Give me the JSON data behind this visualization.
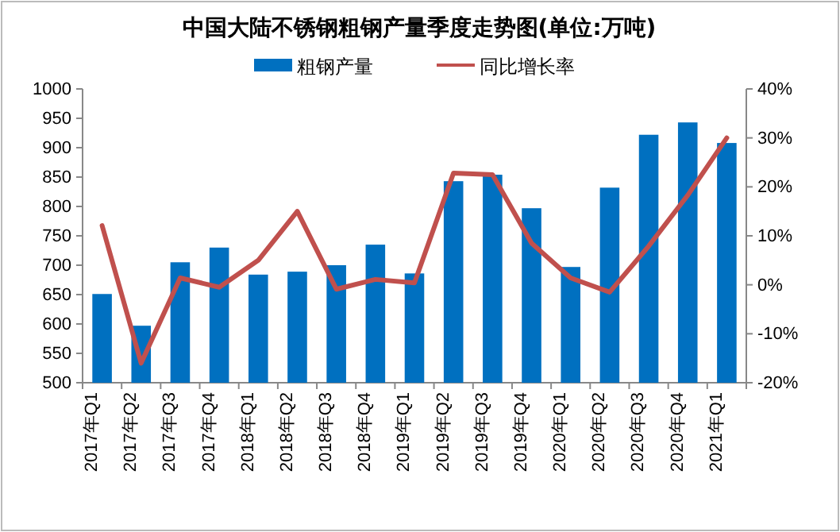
{
  "chart_data": {
    "type": "bar",
    "title": "中国大陆不锈钢粗钢产量季度走势图(单位:万吨)",
    "categories": [
      "2017年Q1",
      "2017年Q2",
      "2017年Q3",
      "2017年Q4",
      "2018年Q1",
      "2018年Q2",
      "2018年Q3",
      "2018年Q4",
      "2019年Q1",
      "2019年Q2",
      "2019年Q3",
      "2019年Q4",
      "2020年Q1",
      "2020年Q2",
      "2020年Q3",
      "2020年Q4",
      "2021年Q1"
    ],
    "series": [
      {
        "name": "粗钢产量",
        "color": "#0070c0",
        "values": [
          651,
          597,
          705,
          730,
          684,
          689,
          700,
          735,
          686,
          843,
          854,
          797,
          697,
          832,
          922,
          943,
          908
        ]
      },
      {
        "name": "同比增长率",
        "type": "line",
        "axis": "y2",
        "color": "#c0504d",
        "values": [
          12.1,
          -16,
          1.4,
          -0.5,
          5,
          15,
          -0.9,
          1.1,
          0.4,
          22.8,
          22.5,
          8.5,
          1.4,
          -1.5,
          7.9,
          18.3,
          30
        ]
      }
    ],
    "ylim": [
      500,
      1000
    ],
    "yticks": [
      500,
      550,
      600,
      650,
      700,
      750,
      800,
      850,
      900,
      950,
      1000
    ],
    "y2lim": [
      -20,
      40
    ],
    "y2ticks": [
      {
        "value": -20,
        "label": "-20%"
      },
      {
        "value": -10,
        "label": "-10%"
      },
      {
        "value": 0,
        "label": "0%"
      },
      {
        "value": 10,
        "label": "10%"
      },
      {
        "value": 20,
        "label": "20%"
      },
      {
        "value": 30,
        "label": "30%"
      },
      {
        "value": 40,
        "label": "40%"
      }
    ],
    "legend": "top",
    "marker": "none",
    "line_style": "solid"
  }
}
